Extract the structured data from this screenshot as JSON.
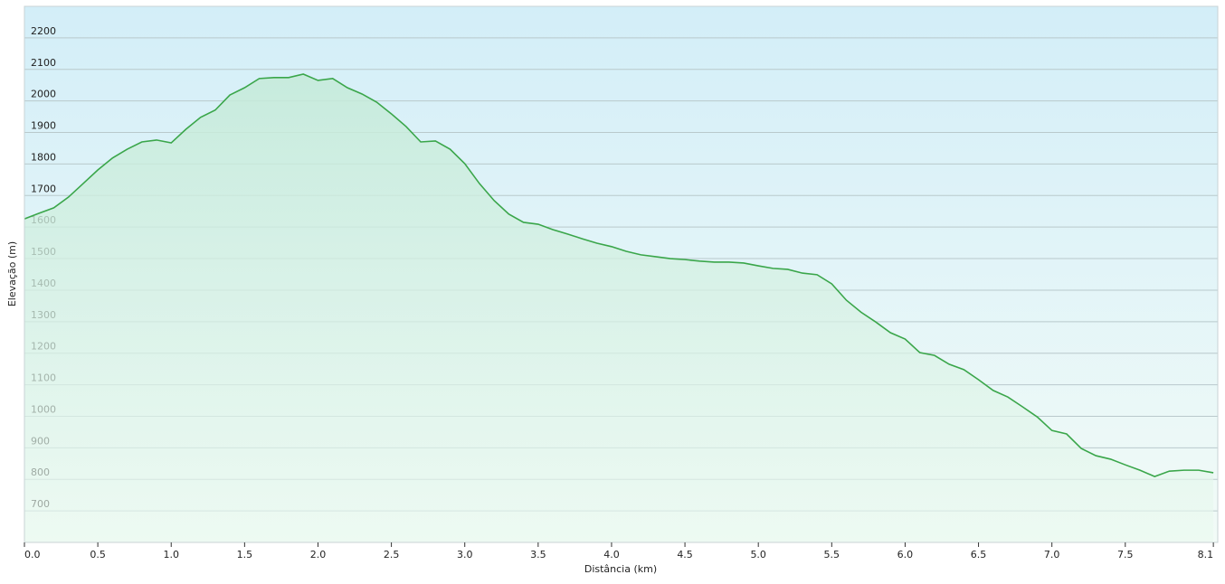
{
  "chart_data": {
    "type": "area",
    "x_label": "Distância  (km)",
    "y_label": "Elevação (m)",
    "color": "#3aa64a",
    "grid": true,
    "xlim": [
      0,
      8.13
    ],
    "ylim": [
      600,
      2300
    ],
    "xticks": [
      {
        "value": 0,
        "label": "0.0"
      },
      0.5,
      {
        "value": 1,
        "label": "1.0"
      },
      1.5,
      {
        "value": 2,
        "label": "2.0"
      },
      2.5,
      {
        "value": 3,
        "label": "3.0"
      },
      3.5,
      {
        "value": 4,
        "label": "4.0"
      },
      4.5,
      {
        "value": 5,
        "label": "5.0"
      },
      5.5,
      {
        "value": 6,
        "label": "6.0"
      },
      6.5,
      {
        "value": 7,
        "label": "7.0"
      },
      7.5,
      8.1
    ],
    "yticks": [
      700,
      800,
      900,
      1000,
      1100,
      1200,
      1300,
      1400,
      1500,
      1600,
      1700,
      1800,
      1900,
      2000,
      2100,
      2200
    ],
    "x": [
      0,
      0.1,
      0.2,
      0.3,
      0.4,
      0.5,
      0.6,
      0.7,
      0.8,
      0.9,
      1,
      1.1,
      1.2,
      1.3,
      1.4,
      1.5,
      1.6,
      1.7,
      1.8,
      1.9,
      2,
      2.1,
      2.2,
      2.3,
      2.4,
      2.5,
      2.6,
      2.7,
      2.8,
      2.9,
      3,
      3.1,
      3.2,
      3.3,
      3.4,
      3.5,
      3.6,
      3.7,
      3.8,
      3.9,
      4,
      4.1,
      4.2,
      4.3,
      4.4,
      4.5,
      4.6,
      4.7,
      4.8,
      4.9,
      5,
      5.1,
      5.2,
      5.3,
      5.4,
      5.5,
      5.6,
      5.7,
      5.8,
      5.9,
      6,
      6.1,
      6.2,
      6.3,
      6.4,
      6.5,
      6.6,
      6.7,
      6.8,
      6.9,
      7,
      7.1,
      7.2,
      7.3,
      7.4,
      7.5,
      7.6,
      7.7,
      7.8,
      7.9,
      8,
      8.1
    ],
    "values": [
      1626,
      1644,
      1661,
      1695,
      1738,
      1781,
      1819,
      1847,
      1870,
      1876,
      1867,
      1910,
      1948,
      1971,
      2019,
      2042,
      2071,
      2074,
      2074,
      2085,
      2065,
      2071,
      2042,
      2022,
      1996,
      1959,
      1919,
      1870,
      1873,
      1847,
      1801,
      1738,
      1684,
      1641,
      1615,
      1609,
      1592,
      1578,
      1563,
      1549,
      1538,
      1523,
      1512,
      1506,
      1500,
      1497,
      1492,
      1489,
      1489,
      1486,
      1477,
      1469,
      1466,
      1454,
      1449,
      1420,
      1368,
      1330,
      1299,
      1265,
      1245,
      1202,
      1193,
      1165,
      1148,
      1116,
      1082,
      1061,
      1030,
      998,
      955,
      944,
      898,
      875,
      864,
      846,
      829,
      809,
      826,
      829,
      829,
      821
    ]
  }
}
